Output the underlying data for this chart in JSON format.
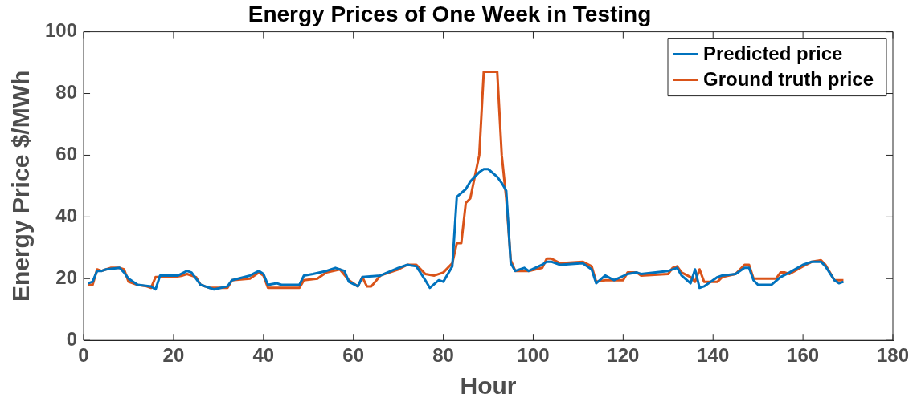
{
  "chart_data": {
    "type": "line",
    "title": "Energy Prices of One Week in Testing",
    "xlabel": "Hour",
    "ylabel": "Energy Price $/MWh",
    "xlim": [
      0,
      180
    ],
    "xticks": [
      0,
      20,
      40,
      60,
      80,
      100,
      120,
      140,
      160,
      180
    ],
    "ylim": [
      0,
      100
    ],
    "yticks": [
      0,
      20,
      40,
      60,
      80,
      100
    ],
    "grid": false,
    "legend": "top right",
    "marker": "none",
    "line_style": "solid",
    "series": [
      {
        "name": "Predicted price",
        "color": "#0072bd",
        "x": [
          1,
          2,
          3,
          4,
          5,
          8,
          9,
          10,
          12,
          15,
          16,
          17,
          21,
          23,
          24,
          26,
          29,
          32,
          33,
          37,
          39,
          40,
          41,
          43,
          44,
          48,
          49,
          51,
          54,
          56,
          58,
          59,
          61,
          62,
          66,
          70,
          72,
          74,
          76,
          77,
          79,
          80,
          82,
          83,
          85,
          86,
          88,
          89,
          90,
          92,
          93,
          94,
          95,
          96,
          98,
          99,
          102,
          103,
          104,
          106,
          111,
          113,
          114,
          116,
          118,
          121,
          123,
          124,
          130,
          132,
          133,
          135,
          136,
          137,
          138,
          141,
          142,
          145,
          147,
          148,
          149,
          150,
          153,
          155,
          157,
          160,
          162,
          164,
          165,
          167,
          168,
          169
        ],
        "values": [
          18.5,
          19,
          22.5,
          22.5,
          23,
          23.5,
          22,
          20,
          18,
          17.5,
          16.5,
          21,
          21,
          22.5,
          22,
          18,
          16.5,
          17.5,
          19.5,
          21,
          22.5,
          21.5,
          18,
          18.5,
          18,
          18,
          21,
          21.5,
          22.5,
          23.5,
          22.5,
          19,
          17.5,
          20.5,
          21,
          23.5,
          24.5,
          24,
          19.5,
          17,
          19.5,
          19,
          24,
          46.5,
          49,
          51.5,
          54.5,
          55.5,
          55.5,
          53,
          51,
          48.5,
          25,
          22.5,
          23.5,
          22.5,
          24.5,
          25.5,
          25.5,
          24.5,
          25,
          23,
          18.5,
          21,
          19.5,
          21.5,
          22,
          21.5,
          22.5,
          23.5,
          21,
          18.5,
          23,
          17,
          17.5,
          20.5,
          21,
          21.5,
          23.5,
          23.5,
          19.5,
          18,
          18,
          20.5,
          22,
          24.5,
          25.5,
          25.5,
          24,
          19.5,
          18.5,
          19
        ]
      },
      {
        "name": "Ground truth price",
        "color": "#d95319",
        "x": [
          1,
          2,
          3,
          4,
          5,
          6,
          8,
          9,
          10,
          12,
          14,
          15,
          16,
          20,
          22,
          23,
          25,
          26,
          28,
          32,
          33,
          37,
          39,
          40,
          41,
          48,
          49,
          52,
          54,
          57,
          59,
          61,
          62,
          63,
          64,
          66,
          70,
          72,
          74,
          76,
          78,
          80,
          82,
          83,
          84,
          85,
          86,
          88,
          89,
          92,
          93,
          94,
          95,
          96,
          98,
          99,
          102,
          103,
          104,
          106,
          111,
          113,
          114,
          116,
          120,
          121,
          123,
          124,
          130,
          131,
          132,
          133,
          135,
          136,
          137,
          138,
          141,
          142,
          145,
          147,
          148,
          149,
          152,
          154,
          155,
          156,
          157,
          160,
          162,
          164,
          165,
          167,
          169
        ],
        "values": [
          18,
          18,
          23,
          22.5,
          23,
          23.5,
          23.5,
          23,
          19,
          18,
          17.5,
          17,
          20.5,
          20.5,
          21,
          21.5,
          20.5,
          18,
          17,
          17,
          19.5,
          20,
          22,
          21,
          17,
          17,
          19.5,
          20,
          22,
          23,
          19.5,
          17.5,
          20.5,
          17.5,
          17.5,
          21,
          23,
          24.5,
          24.5,
          21.5,
          21,
          22,
          25,
          31.5,
          31.5,
          44.5,
          46,
          60,
          87,
          87,
          60,
          46,
          26,
          22.5,
          22.5,
          22.5,
          23.5,
          26.5,
          26.5,
          25,
          25.5,
          24,
          19,
          19.5,
          19.5,
          22,
          22,
          21,
          21.5,
          23.5,
          24,
          22,
          20.5,
          19,
          23,
          19,
          19,
          20.5,
          21.5,
          24.5,
          24.5,
          20,
          20,
          20,
          22,
          22,
          21.5,
          24,
          25.5,
          26,
          24.5,
          19.5,
          19.5
        ]
      }
    ]
  }
}
